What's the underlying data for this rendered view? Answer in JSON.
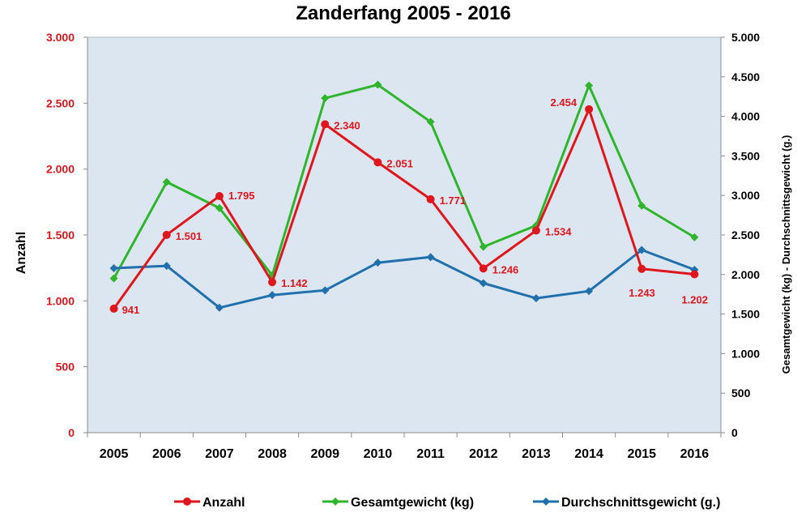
{
  "chart_data": {
    "type": "line",
    "title": "Zanderfang 2005 - 2016",
    "xlabel": "",
    "ylabel": "Anzahl",
    "y2label": "Gesamtgewicht (kg) - Durchschnittsgewicht (g.)",
    "categories": [
      "2005",
      "2006",
      "2007",
      "2008",
      "2009",
      "2010",
      "2011",
      "2012",
      "2013",
      "2014",
      "2015",
      "2016"
    ],
    "ylim": [
      0,
      3000
    ],
    "y2lim": [
      0,
      5000
    ],
    "yticks": [
      0,
      500,
      1000,
      1500,
      2000,
      2500,
      3000
    ],
    "yticklabels": [
      "0",
      "500",
      "1.000",
      "1.500",
      "2.000",
      "2.500",
      "3.000"
    ],
    "y2ticks": [
      0,
      500,
      1000,
      1500,
      2000,
      2500,
      3000,
      3500,
      4000,
      4500,
      5000
    ],
    "y2ticklabels": [
      "0",
      "500",
      "1.000",
      "1.500",
      "2.000",
      "2.500",
      "3.000",
      "3.500",
      "4.000",
      "4.500",
      "5.000"
    ],
    "grid": false,
    "legend_position": "bottom",
    "plot_background": "#dce6f1",
    "series": [
      {
        "name": "Anzahl",
        "axis": "left",
        "color": "#e0161d",
        "marker": "circle",
        "values": [
          941,
          1501,
          1795,
          1142,
          2340,
          2051,
          1771,
          1246,
          1534,
          2454,
          1243,
          1202
        ],
        "labels": [
          "941",
          "1.501",
          "1.795",
          "1.142",
          "2.340",
          "2.051",
          "1.771",
          "1.246",
          "1.534",
          "2.454",
          "1.243",
          "1.202"
        ]
      },
      {
        "name": "Gesamtgewicht (kg)",
        "axis": "right",
        "color": "#2fb52c",
        "marker": "diamond",
        "values": [
          1950,
          3170,
          2840,
          1990,
          4230,
          4400,
          3930,
          2350,
          2620,
          4390,
          2870,
          2470
        ]
      },
      {
        "name": "Durchschnittsgewicht (g.)",
        "axis": "right",
        "color": "#1f70ad",
        "marker": "diamond",
        "values": [
          2080,
          2110,
          1580,
          1740,
          1800,
          2150,
          2220,
          1890,
          1700,
          1790,
          2310,
          2060
        ]
      }
    ]
  }
}
